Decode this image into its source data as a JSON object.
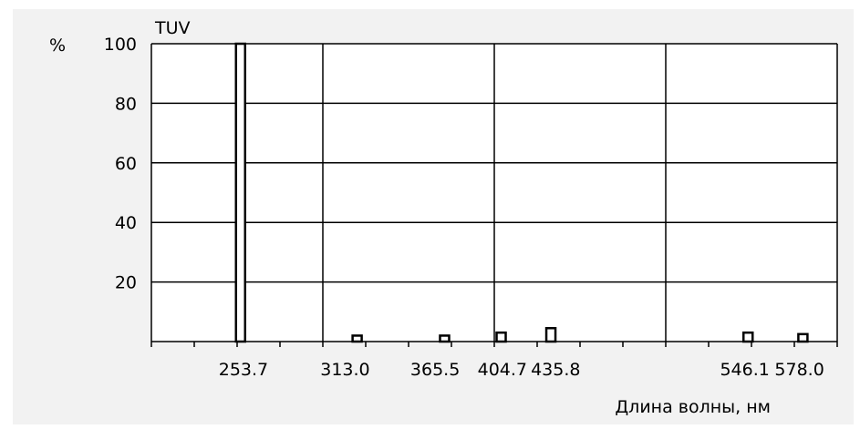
{
  "chart_data": {
    "type": "bar",
    "title": "TUV",
    "ylabel": "%",
    "xlabel": "Длина волны, нм",
    "ylim": [
      0,
      100
    ],
    "yticks": [
      20,
      40,
      60,
      80,
      100
    ],
    "xlim": [
      200,
      600
    ],
    "xtick_labels": [
      "253.7",
      "313.0",
      "365.5",
      "404.7",
      "435.8",
      "546.1",
      "578.0"
    ],
    "grid": true,
    "bars": [
      {
        "x": 252,
        "value": 100
      },
      {
        "x": 320,
        "value": 2
      },
      {
        "x": 371,
        "value": 2
      },
      {
        "x": 404,
        "value": 3
      },
      {
        "x": 433,
        "value": 4.5
      },
      {
        "x": 548,
        "value": 3
      },
      {
        "x": 580,
        "value": 2.5
      }
    ]
  }
}
